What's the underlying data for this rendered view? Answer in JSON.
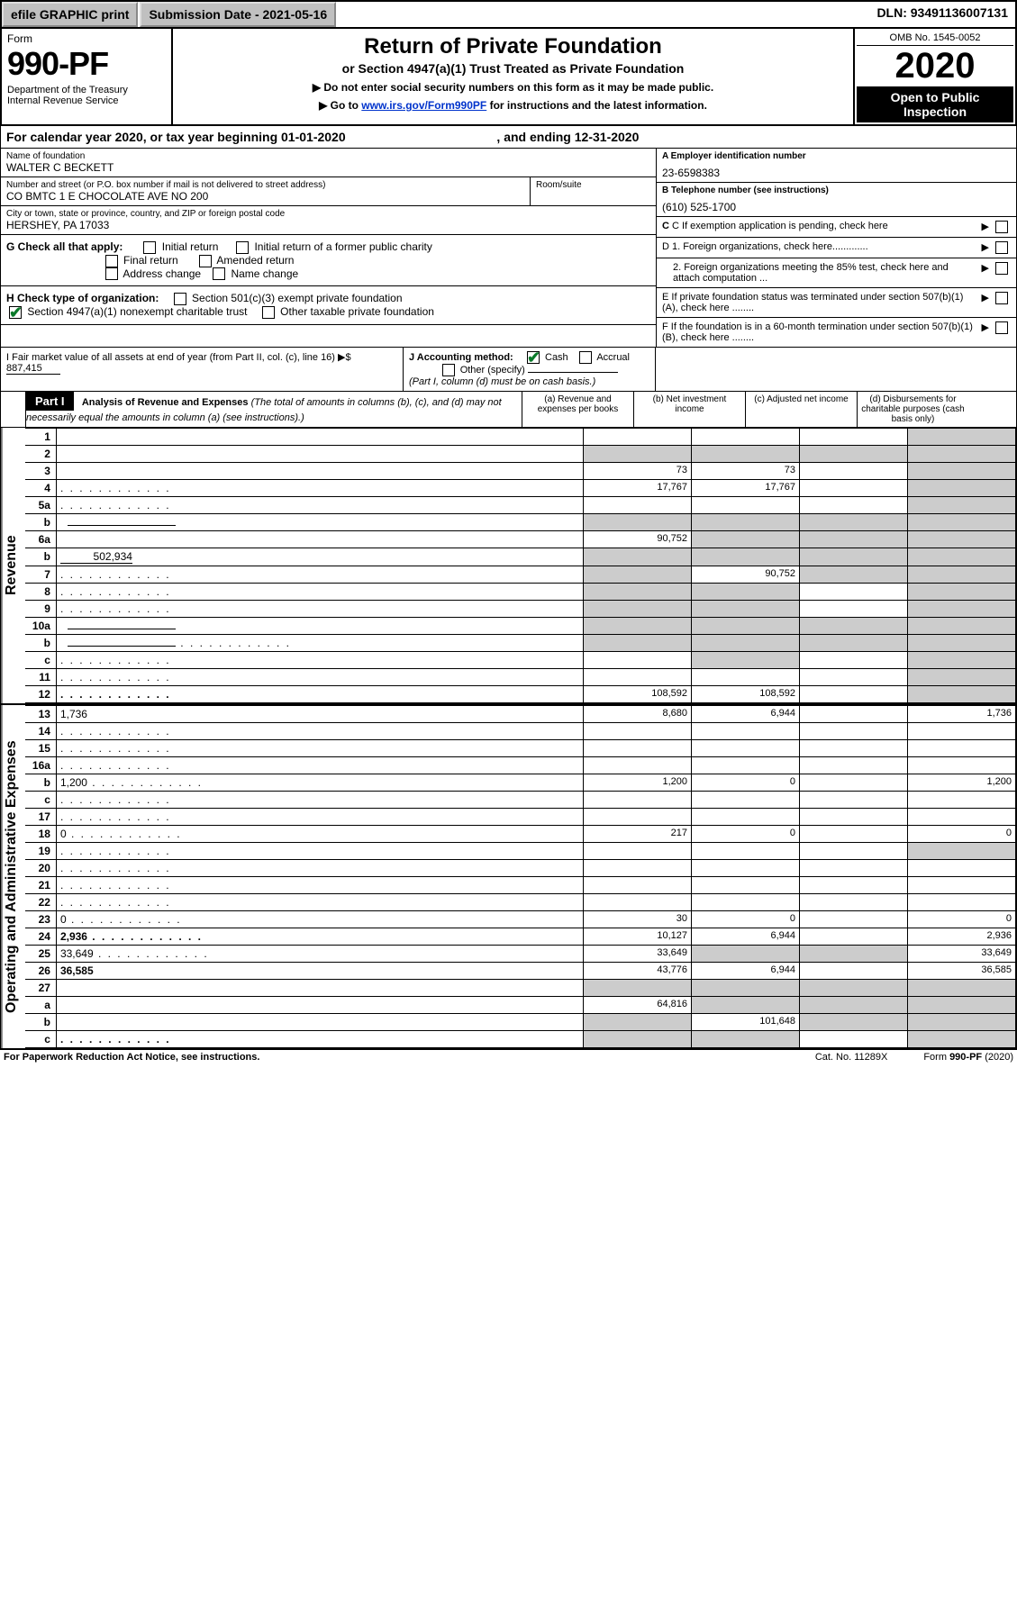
{
  "topbar": {
    "efile": "efile GRAPHIC print",
    "submission": "Submission Date - 2021-05-16",
    "dln": "DLN: 93491136007131"
  },
  "header": {
    "form_label": "Form",
    "form_number": "990-PF",
    "dept": "Department of the Treasury\nInternal Revenue Service",
    "title": "Return of Private Foundation",
    "subtitle": "or Section 4947(a)(1) Trust Treated as Private Foundation",
    "instr1": "▶ Do not enter social security numbers on this form as it may be made public.",
    "instr2_pre": "▶ Go to ",
    "instr2_link": "www.irs.gov/Form990PF",
    "instr2_post": " for instructions and the latest information.",
    "omb": "OMB No. 1545-0052",
    "year": "2020",
    "open": "Open to Public Inspection"
  },
  "calyear": {
    "text_pre": "For calendar year 2020, or tax year beginning ",
    "begin": "01-01-2020",
    "text_mid": " , and ending ",
    "end": "12-31-2020"
  },
  "identity": {
    "name_lbl": "Name of foundation",
    "name": "WALTER C BECKETT",
    "addr_lbl": "Number and street (or P.O. box number if mail is not delivered to street address)",
    "addr": "CO BMTC 1 E CHOCOLATE AVE NO 200",
    "room_lbl": "Room/suite",
    "room": "",
    "city_lbl": "City or town, state or province, country, and ZIP or foreign postal code",
    "city": "HERSHEY, PA  17033",
    "ein_lbl": "A Employer identification number",
    "ein": "23-6598383",
    "tel_lbl": "B Telephone number (see instructions)",
    "tel": "(610) 525-1700",
    "c_lbl": "C If exemption application is pending, check here",
    "d1": "D 1. Foreign organizations, check here.............",
    "d2": "2. Foreign organizations meeting the 85% test, check here and attach computation ...",
    "e": "E  If private foundation status was terminated under section 507(b)(1)(A), check here ........",
    "f": "F  If the foundation is in a 60-month termination under section 507(b)(1)(B), check here ........"
  },
  "g": {
    "label": "G Check all that apply:",
    "initial": "Initial return",
    "initial_former": "Initial return of a former public charity",
    "final": "Final return",
    "amended": "Amended return",
    "address": "Address change",
    "name": "Name change"
  },
  "h": {
    "label": "H Check type of organization:",
    "s501": "Section 501(c)(3) exempt private foundation",
    "s4947": "Section 4947(a)(1) nonexempt charitable trust",
    "other": "Other taxable private foundation"
  },
  "i": {
    "label": "I Fair market value of all assets at end of year (from Part II, col. (c), line 16) ▶$",
    "value": "887,415"
  },
  "j": {
    "label": "J Accounting method:",
    "cash": "Cash",
    "accrual": "Accrual",
    "other": "Other (specify)",
    "note": "(Part I, column (d) must be on cash basis.)"
  },
  "part1": {
    "label": "Part I",
    "title": "Analysis of Revenue and Expenses",
    "note": "(The total of amounts in columns (b), (c), and (d) may not necessarily equal the amounts in column (a) (see instructions).)",
    "col_a": "(a)  Revenue and expenses per books",
    "col_b": "(b)  Net investment income",
    "col_c": "(c)  Adjusted net income",
    "col_d": "(d)  Disbursements for charitable purposes (cash basis only)"
  },
  "sections": {
    "revenue": "Revenue",
    "expenses": "Operating and Administrative Expenses"
  },
  "rows": [
    {
      "n": "1",
      "d": "",
      "a": "",
      "b": "",
      "c": "",
      "shade_d": true
    },
    {
      "n": "2",
      "d": "",
      "a": "",
      "b": "",
      "c": "",
      "shade_all": true,
      "bold_not": true
    },
    {
      "n": "3",
      "d": "",
      "a": "73",
      "b": "73",
      "c": "",
      "shade_d": true
    },
    {
      "n": "4",
      "d": "",
      "a": "17,767",
      "b": "17,767",
      "c": "",
      "shade_d": true,
      "dots": true
    },
    {
      "n": "5a",
      "d": "",
      "a": "",
      "b": "",
      "c": "",
      "shade_d": true,
      "dots": true
    },
    {
      "n": "b",
      "d": "",
      "a": "",
      "b": "",
      "c": "",
      "shade_all": true,
      "inline_box": true
    },
    {
      "n": "6a",
      "d": "",
      "a": "90,752",
      "b": "",
      "c": "",
      "shade_bcd": true
    },
    {
      "n": "b",
      "d": "",
      "a": "",
      "b": "",
      "c": "",
      "shade_all": true,
      "inline_val": "502,934"
    },
    {
      "n": "7",
      "d": "",
      "a": "",
      "b": "90,752",
      "c": "",
      "shade_a": true,
      "shade_cd": true,
      "dots": true
    },
    {
      "n": "8",
      "d": "",
      "a": "",
      "b": "",
      "c": "",
      "shade_ab": true,
      "shade_d": true,
      "dots": true
    },
    {
      "n": "9",
      "d": "",
      "a": "",
      "b": "",
      "c": "",
      "shade_ab": true,
      "shade_d": true,
      "dots": true
    },
    {
      "n": "10a",
      "d": "",
      "a": "",
      "b": "",
      "c": "",
      "shade_all": true,
      "inline_box": true
    },
    {
      "n": "b",
      "d": "",
      "a": "",
      "b": "",
      "c": "",
      "shade_all": true,
      "inline_box": true,
      "dots": true
    },
    {
      "n": "c",
      "d": "",
      "a": "",
      "b": "",
      "c": "",
      "shade_b": true,
      "shade_d": true,
      "dots": true
    },
    {
      "n": "11",
      "d": "",
      "a": "",
      "b": "",
      "c": "",
      "shade_d": true,
      "dots": true
    },
    {
      "n": "12",
      "d": "",
      "a": "108,592",
      "b": "108,592",
      "c": "",
      "shade_d": true,
      "bold": true,
      "dots": true
    }
  ],
  "rows2": [
    {
      "n": "13",
      "d": "1,736",
      "a": "8,680",
      "b": "6,944",
      "c": ""
    },
    {
      "n": "14",
      "d": "",
      "a": "",
      "b": "",
      "c": "",
      "dots": true
    },
    {
      "n": "15",
      "d": "",
      "a": "",
      "b": "",
      "c": "",
      "dots": true
    },
    {
      "n": "16a",
      "d": "",
      "a": "",
      "b": "",
      "c": "",
      "dots": true
    },
    {
      "n": "b",
      "d": "1,200",
      "a": "1,200",
      "b": "0",
      "c": "",
      "dots": true
    },
    {
      "n": "c",
      "d": "",
      "a": "",
      "b": "",
      "c": "",
      "dots": true
    },
    {
      "n": "17",
      "d": "",
      "a": "",
      "b": "",
      "c": "",
      "dots": true
    },
    {
      "n": "18",
      "d": "0",
      "a": "217",
      "b": "0",
      "c": "",
      "dots": true
    },
    {
      "n": "19",
      "d": "",
      "a": "",
      "b": "",
      "c": "",
      "shade_d": true,
      "dots": true
    },
    {
      "n": "20",
      "d": "",
      "a": "",
      "b": "",
      "c": "",
      "dots": true
    },
    {
      "n": "21",
      "d": "",
      "a": "",
      "b": "",
      "c": "",
      "dots": true
    },
    {
      "n": "22",
      "d": "",
      "a": "",
      "b": "",
      "c": "",
      "dots": true
    },
    {
      "n": "23",
      "d": "0",
      "a": "30",
      "b": "0",
      "c": "",
      "dots": true
    },
    {
      "n": "24",
      "d": "2,936",
      "a": "10,127",
      "b": "6,944",
      "c": "",
      "bold": true,
      "dots": true
    },
    {
      "n": "25",
      "d": "33,649",
      "a": "33,649",
      "b": "",
      "c": "",
      "shade_bc": true,
      "dots": true
    },
    {
      "n": "26",
      "d": "36,585",
      "a": "43,776",
      "b": "6,944",
      "c": "",
      "bold": true
    },
    {
      "n": "27",
      "d": "",
      "a": "",
      "b": "",
      "c": "",
      "shade_all": true
    },
    {
      "n": "a",
      "d": "",
      "a": "64,816",
      "b": "",
      "c": "",
      "shade_bcd": true,
      "bold": true
    },
    {
      "n": "b",
      "d": "",
      "a": "",
      "b": "101,648",
      "c": "",
      "shade_a": true,
      "shade_cd": true,
      "bold": true
    },
    {
      "n": "c",
      "d": "",
      "a": "",
      "b": "",
      "c": "",
      "shade_ab": true,
      "shade_d": true,
      "bold": true,
      "dots": true
    }
  ],
  "footer": {
    "left": "For Paperwork Reduction Act Notice, see instructions.",
    "mid": "Cat. No. 11289X",
    "right": "Form 990-PF (2020)"
  },
  "colors": {
    "shade": "#cccccc",
    "check_green": "#0a7a2a",
    "link": "#0033cc"
  }
}
